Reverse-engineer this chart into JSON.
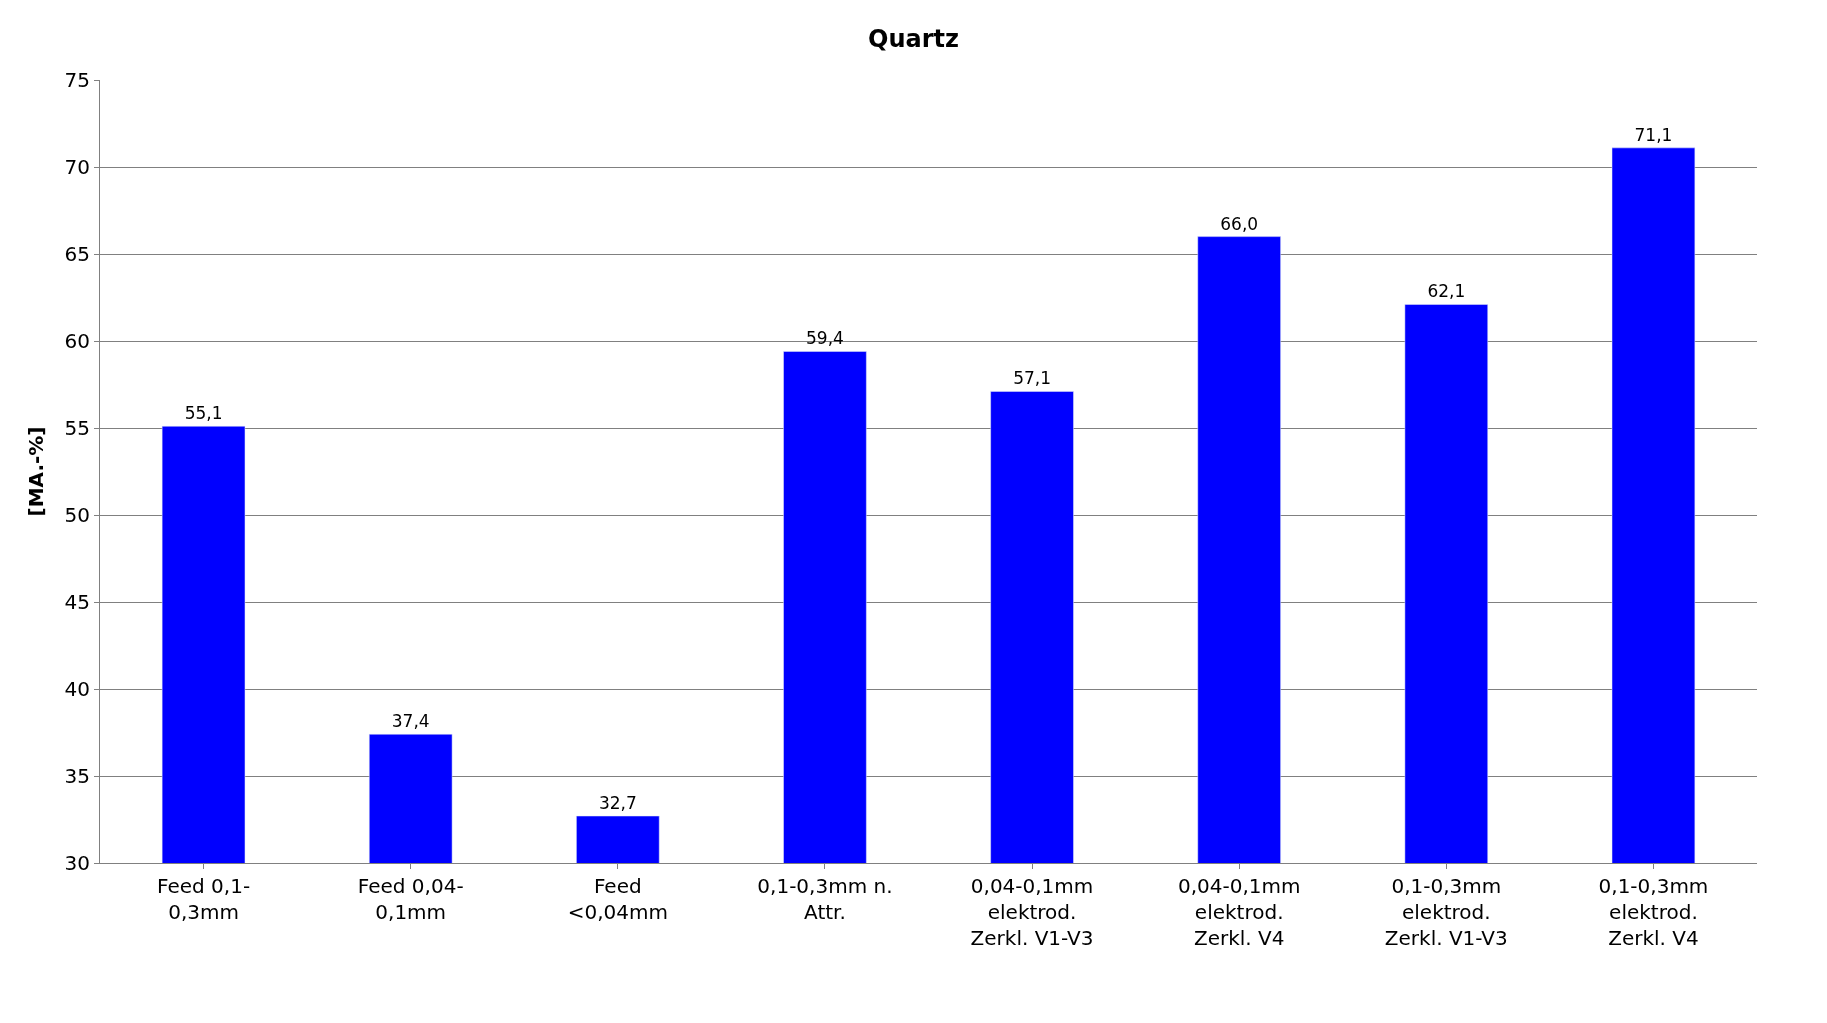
{
  "chart_data": {
    "type": "bar",
    "title": "Quartz",
    "ylabel": "[MA.-%]",
    "categories": [
      "Feed 0,1-\n0,3mm",
      "Feed 0,04-\n0,1mm",
      "Feed\n<0,04mm",
      "0,1-0,3mm n.\nAttr.",
      "0,04-0,1mm\nelektrod.\nZerkl. V1-V3",
      "0,04-0,1mm\nelektrod.\nZerkl. V4",
      "0,1-0,3mm\nelektrod.\nZerkl. V1-V3",
      "0,1-0,3mm\nelektrod.\nZerkl. V4"
    ],
    "values": [
      55.1,
      37.4,
      32.7,
      59.4,
      57.1,
      66.0,
      62.1,
      71.1
    ],
    "value_labels": [
      "55,1",
      "37,4",
      "32,7",
      "59,4",
      "57,1",
      "66,0",
      "62,1",
      "71,1"
    ],
    "color": "#0000ff",
    "ylim": [
      30,
      75
    ],
    "yticks": [
      30,
      35,
      40,
      45,
      50,
      55,
      60,
      65,
      70,
      75
    ],
    "grid": "y"
  }
}
